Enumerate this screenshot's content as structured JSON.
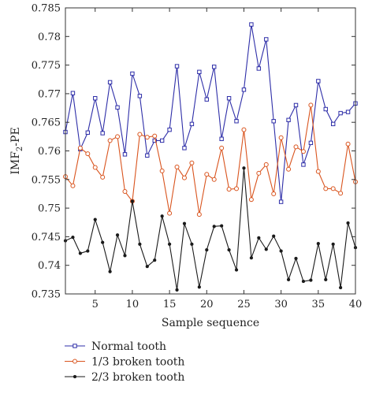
{
  "chart_data": {
    "type": "line",
    "xlabel": "Sample sequence",
    "ylabel_main": "IMF",
    "ylabel_sub": "2",
    "ylabel_rest": "-PE",
    "xlim": [
      1,
      40
    ],
    "ylim": [
      0.735,
      0.785
    ],
    "xticks": [
      5,
      10,
      15,
      20,
      25,
      30,
      35,
      40
    ],
    "yticks": [
      0.735,
      0.74,
      0.745,
      0.75,
      0.755,
      0.76,
      0.765,
      0.77,
      0.775,
      0.78,
      0.785
    ],
    "ytick_labels": [
      "0.735",
      "0.74",
      "0.745",
      "0.75",
      "0.755",
      "0.76",
      "0.765",
      "0.77",
      "0.775",
      "0.78",
      "0.785"
    ],
    "grid": false,
    "legend_position": "bottom-left, below plot",
    "x": [
      1,
      2,
      3,
      4,
      5,
      6,
      7,
      8,
      9,
      10,
      11,
      12,
      13,
      14,
      15,
      16,
      17,
      18,
      19,
      20,
      21,
      22,
      23,
      24,
      25,
      26,
      27,
      28,
      29,
      30,
      31,
      32,
      33,
      34,
      35,
      36,
      37,
      38,
      39,
      40
    ],
    "series": [
      {
        "name": "Normal tooth",
        "color": "#2e2ea8",
        "marker": "square",
        "values": [
          0.7633,
          0.7701,
          0.7603,
          0.7632,
          0.7692,
          0.7631,
          0.772,
          0.7676,
          0.7594,
          0.7735,
          0.7696,
          0.7592,
          0.7618,
          0.7618,
          0.7637,
          0.7748,
          0.7605,
          0.7647,
          0.7738,
          0.769,
          0.7747,
          0.7621,
          0.7692,
          0.7652,
          0.7707,
          0.7821,
          0.7744,
          0.7795,
          0.7652,
          0.7511,
          0.7654,
          0.768,
          0.7576,
          0.7614,
          0.7722,
          0.7673,
          0.7647,
          0.7666,
          0.7668,
          0.7683
        ]
      },
      {
        "name": "1/3 broken tooth",
        "color": "#d9541e",
        "marker": "circle",
        "values": [
          0.7555,
          0.7539,
          0.7605,
          0.7595,
          0.7571,
          0.7554,
          0.7618,
          0.7625,
          0.7529,
          0.7512,
          0.7629,
          0.7624,
          0.7626,
          0.7565,
          0.7491,
          0.7572,
          0.7553,
          0.7579,
          0.7489,
          0.7559,
          0.755,
          0.7605,
          0.7533,
          0.7534,
          0.7637,
          0.7515,
          0.7561,
          0.7576,
          0.7525,
          0.7623,
          0.7568,
          0.7607,
          0.7599,
          0.768,
          0.7564,
          0.7534,
          0.7534,
          0.7526,
          0.7612,
          0.7546
        ]
      },
      {
        "name": "2/3 broken tooth",
        "color": "#1a1a1a",
        "marker": "dot",
        "values": [
          0.7443,
          0.7449,
          0.7421,
          0.7425,
          0.748,
          0.744,
          0.7389,
          0.7453,
          0.7417,
          0.7512,
          0.7437,
          0.7398,
          0.7409,
          0.7486,
          0.7437,
          0.7357,
          0.7473,
          0.7437,
          0.7362,
          0.7427,
          0.7468,
          0.7469,
          0.7427,
          0.7392,
          0.757,
          0.7413,
          0.7448,
          0.7428,
          0.7451,
          0.7425,
          0.7375,
          0.7412,
          0.7372,
          0.7374,
          0.7438,
          0.7375,
          0.7437,
          0.7361,
          0.7474,
          0.7431
        ]
      }
    ]
  }
}
